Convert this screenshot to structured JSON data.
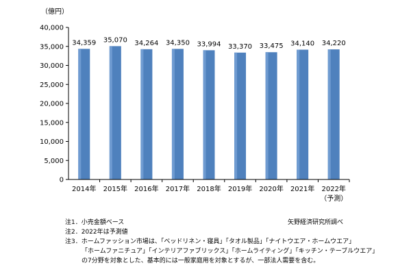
{
  "chart_data": {
    "type": "bar",
    "unit_label": "（億円）",
    "categories": [
      "2014年",
      "2015年",
      "2016年",
      "2017年",
      "2018年",
      "2019年",
      "2020年",
      "2021年",
      "2022年"
    ],
    "category_sublabels": [
      "",
      "",
      "",
      "",
      "",
      "",
      "",
      "",
      "（予測）"
    ],
    "values": [
      34359,
      35070,
      34264,
      34350,
      33994,
      33370,
      33475,
      34140,
      34220
    ],
    "data_labels": [
      "34,359",
      "35,070",
      "34,264",
      "34,350",
      "33,994",
      "33,370",
      "33,475",
      "34,140",
      "34,220"
    ],
    "ylim": [
      0,
      40000
    ],
    "yticks": [
      0,
      5000,
      10000,
      15000,
      20000,
      25000,
      30000,
      35000,
      40000
    ],
    "ytick_labels": [
      "0",
      "5,000",
      "10,000",
      "15,000",
      "20,000",
      "25,000",
      "30,000",
      "35,000",
      "40,000"
    ],
    "bar_color": "#4f81bd",
    "grid": false
  },
  "notes": {
    "note1": "注1．小売金額ベース",
    "note2": "注2．2022年は予測値",
    "note3_line1": "注3．ホームファッション市場は、「ベッドリネン・寝具」「タオル製品」「ナイトウエア・ホームウエア」",
    "note3_line2": "「ホームファニチュア」「インテリアファブリックス」「ホームライティング」「キッチン・テーブルウエア」",
    "note3_line3": "の7分野を対象とした、基本的には一般家庭用を対象とするが、一部法人需要を含む。"
  },
  "source": "矢野経済研究所調べ"
}
